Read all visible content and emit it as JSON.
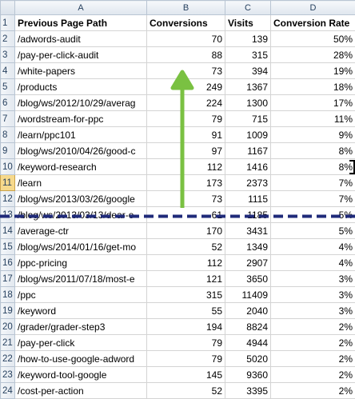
{
  "spreadsheet": {
    "column_letters": [
      "A",
      "B",
      "C",
      "D"
    ],
    "headers": [
      "Previous Page Path",
      "Conversions",
      "Visits",
      "Conversion Rate"
    ],
    "selected_row": "11",
    "rows": [
      {
        "n": "2",
        "path": "/adwords-audit",
        "conv": "70",
        "visits": "139",
        "rate": "50%"
      },
      {
        "n": "3",
        "path": "/pay-per-click-audit",
        "conv": "88",
        "visits": "315",
        "rate": "28%"
      },
      {
        "n": "4",
        "path": "/white-papers",
        "conv": "73",
        "visits": "394",
        "rate": "19%"
      },
      {
        "n": "5",
        "path": "/products",
        "conv": "249",
        "visits": "1367",
        "rate": "18%"
      },
      {
        "n": "6",
        "path": "/blog/ws/2012/10/29/averag",
        "conv": "224",
        "visits": "1300",
        "rate": "17%"
      },
      {
        "n": "7",
        "path": "/wordstream-for-ppc",
        "conv": "79",
        "visits": "715",
        "rate": "11%"
      },
      {
        "n": "8",
        "path": "/learn/ppc101",
        "conv": "91",
        "visits": "1009",
        "rate": "9%"
      },
      {
        "n": "9",
        "path": "/blog/ws/2010/04/26/good-c",
        "conv": "97",
        "visits": "1167",
        "rate": "8%"
      },
      {
        "n": "10",
        "path": "/keyword-research",
        "conv": "112",
        "visits": "1416",
        "rate": "8%"
      },
      {
        "n": "11",
        "path": "/learn",
        "conv": "173",
        "visits": "2373",
        "rate": "7%"
      },
      {
        "n": "12",
        "path": "/blog/ws/2013/03/26/google",
        "conv": "73",
        "visits": "1115",
        "rate": "7%"
      },
      {
        "n": "13",
        "path": "/blog/ws/2013/03/13/dear-e",
        "conv": "61",
        "visits": "1185",
        "rate": "5%"
      },
      {
        "n": "14",
        "path": "/average-ctr",
        "conv": "170",
        "visits": "3431",
        "rate": "5%"
      },
      {
        "n": "15",
        "path": "/blog/ws/2014/01/16/get-mo",
        "conv": "52",
        "visits": "1349",
        "rate": "4%"
      },
      {
        "n": "16",
        "path": "/ppc-pricing",
        "conv": "112",
        "visits": "2907",
        "rate": "4%"
      },
      {
        "n": "17",
        "path": "/blog/ws/2011/07/18/most-e",
        "conv": "121",
        "visits": "3650",
        "rate": "3%"
      },
      {
        "n": "18",
        "path": "/ppc",
        "conv": "315",
        "visits": "11409",
        "rate": "3%"
      },
      {
        "n": "19",
        "path": "/keyword",
        "conv": "55",
        "visits": "2040",
        "rate": "3%"
      },
      {
        "n": "20",
        "path": "/grader/grader-step3",
        "conv": "194",
        "visits": "8824",
        "rate": "2%"
      },
      {
        "n": "21",
        "path": "/pay-per-click",
        "conv": "79",
        "visits": "4944",
        "rate": "2%"
      },
      {
        "n": "22",
        "path": "/how-to-use-google-adword",
        "conv": "79",
        "visits": "5020",
        "rate": "2%"
      },
      {
        "n": "23",
        "path": "/keyword-tool-google",
        "conv": "145",
        "visits": "9360",
        "rate": "2%"
      },
      {
        "n": "24",
        "path": "/cost-per-action",
        "conv": "52",
        "visits": "3395",
        "rate": "2%"
      }
    ]
  },
  "annotations": {
    "arrow_color": "#7ac142",
    "arrow_icon": "up-arrow-icon",
    "divider_color": "#1f2a7a"
  }
}
